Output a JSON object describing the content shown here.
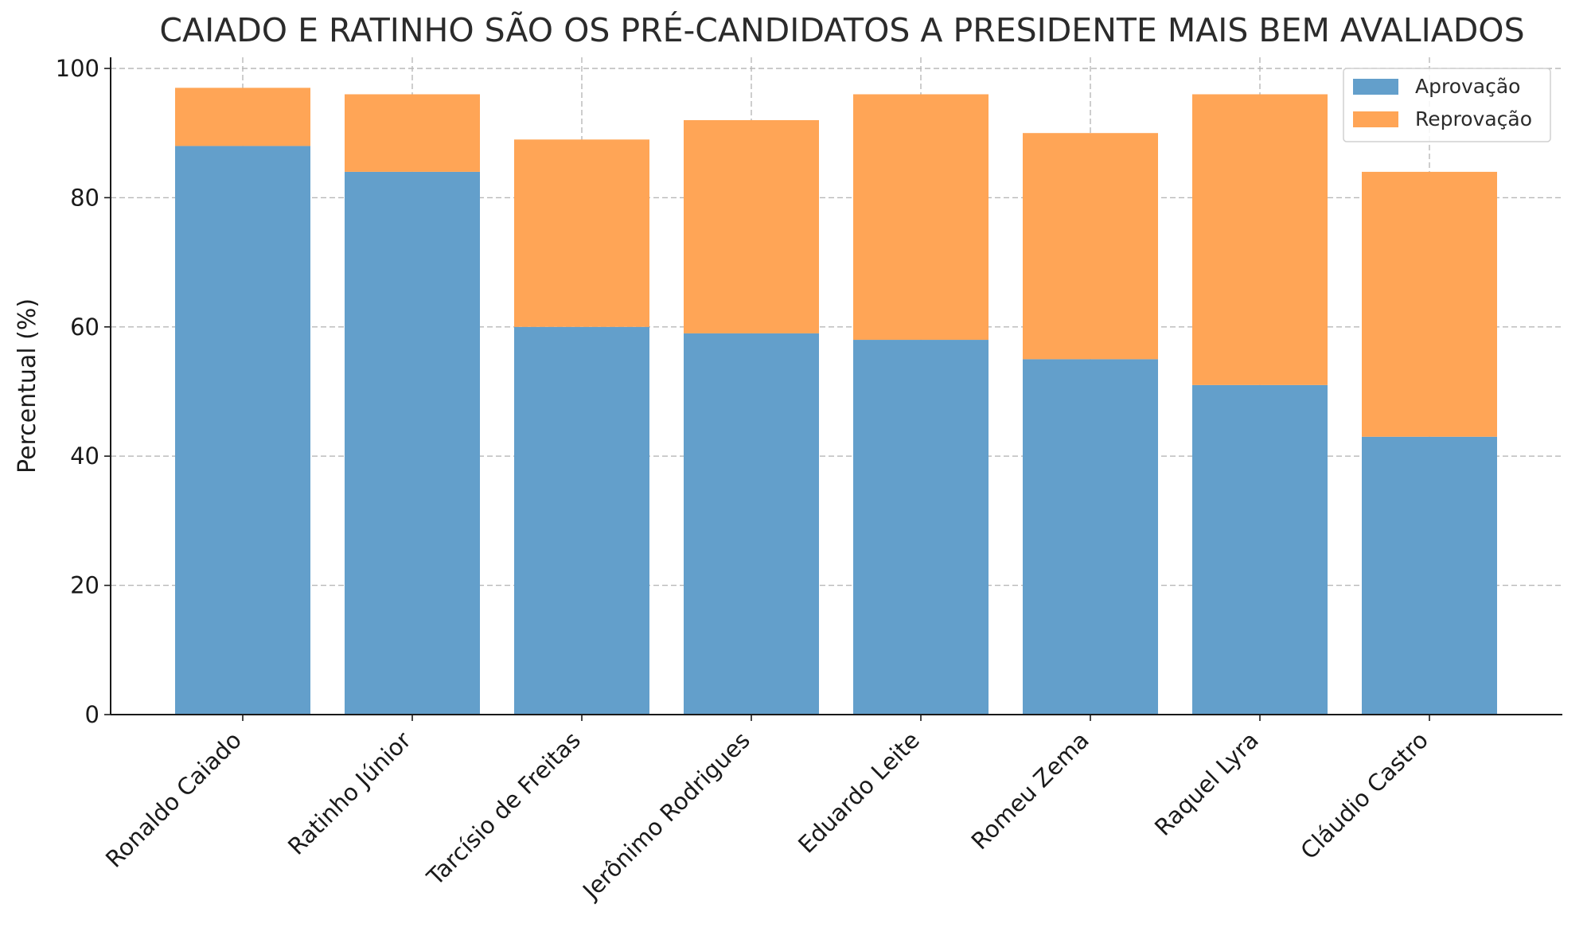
{
  "chart_data": {
    "type": "bar",
    "stacked": true,
    "title": "CAIADO E RATINHO SÃO OS PRÉ-CANDIDATOS A PRESIDENTE MAIS BEM AVALIADOS",
    "xlabel": "",
    "ylabel": "Percentual (%)",
    "ylim": [
      0,
      100
    ],
    "yticks": [
      0,
      20,
      40,
      60,
      80,
      100
    ],
    "grid": true,
    "legend_position": "top-right",
    "categories": [
      "Ronaldo Caiado",
      "Ratinho Júnior",
      "Tarcísio de Freitas",
      "Jerônimo Rodrigues",
      "Eduardo Leite",
      "Romeu Zema",
      "Raquel Lyra",
      "Cláudio Castro"
    ],
    "series": [
      {
        "name": "Aprovação",
        "color": "#639fcb",
        "values": [
          88,
          84,
          60,
          59,
          58,
          55,
          51,
          43
        ]
      },
      {
        "name": "Reprovação",
        "color": "#ffa556",
        "values": [
          9,
          12,
          29,
          33,
          38,
          35,
          45,
          41
        ]
      }
    ]
  }
}
